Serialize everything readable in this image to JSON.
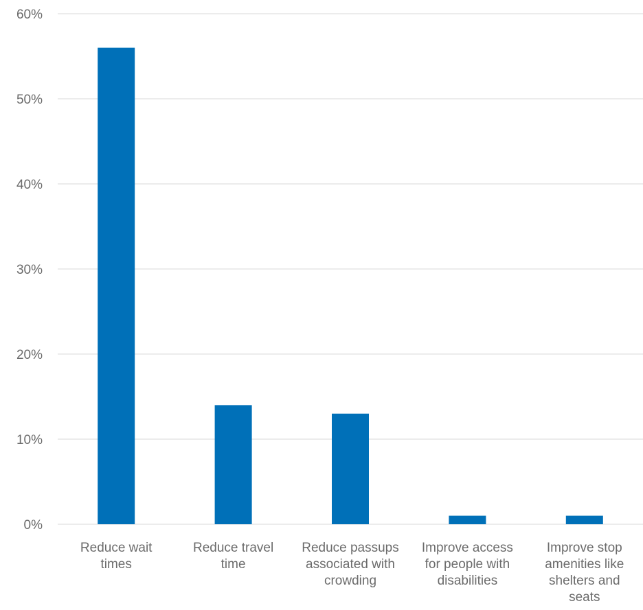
{
  "chart_data": {
    "type": "bar",
    "categories": [
      [
        "Reduce wait",
        "times"
      ],
      [
        "Reduce travel",
        "time"
      ],
      [
        "Reduce passups",
        "associated with",
        "crowding"
      ],
      [
        "Improve access",
        "for people with",
        "disabilities"
      ],
      [
        "Improve stop",
        "amenities like",
        "shelters and",
        "seats"
      ]
    ],
    "values": [
      56,
      14,
      13,
      1,
      1
    ],
    "value_unit": "%",
    "ylim": [
      0,
      60
    ],
    "yticks": [
      "0%",
      "10%",
      "20%",
      "30%",
      "40%",
      "50%",
      "60%"
    ],
    "ytick_values": [
      0,
      10,
      20,
      30,
      40,
      50,
      60
    ],
    "grid": true,
    "legend": "none",
    "bar_color": "#0070b8"
  }
}
